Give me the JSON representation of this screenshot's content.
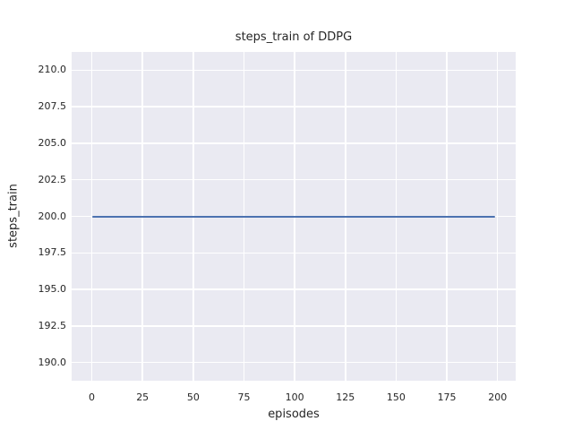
{
  "chart_data": {
    "type": "line",
    "title": "steps_train of DDPG",
    "xlabel": "episodes",
    "ylabel": "steps_train",
    "x_ticks": [
      0,
      25,
      50,
      75,
      100,
      125,
      150,
      175,
      200
    ],
    "x_tick_labels": [
      "0",
      "25",
      "50",
      "75",
      "100",
      "125",
      "150",
      "175",
      "200"
    ],
    "y_ticks": [
      190.0,
      192.5,
      195.0,
      197.5,
      200.0,
      202.5,
      205.0,
      207.5,
      210.0
    ],
    "y_tick_labels": [
      "190.0",
      "192.5",
      "195.0",
      "197.5",
      "200.0",
      "202.5",
      "205.0",
      "207.5",
      "210.0"
    ],
    "xlim": [
      -9.95,
      208.95
    ],
    "ylim": [
      188.75,
      211.25
    ],
    "grid": true,
    "legend": "none",
    "series": [
      {
        "name": "DDPG steps_train",
        "description": "constant value 200 for every episode",
        "x": [
          0,
          199
        ],
        "y": [
          200,
          200
        ],
        "color": "#4c72b0"
      }
    ],
    "colors": {
      "plot_background": "#eaeaf2",
      "gridline": "#ffffff",
      "text": "#262626",
      "line": "#4c72b0",
      "figure_background": "#ffffff"
    }
  }
}
